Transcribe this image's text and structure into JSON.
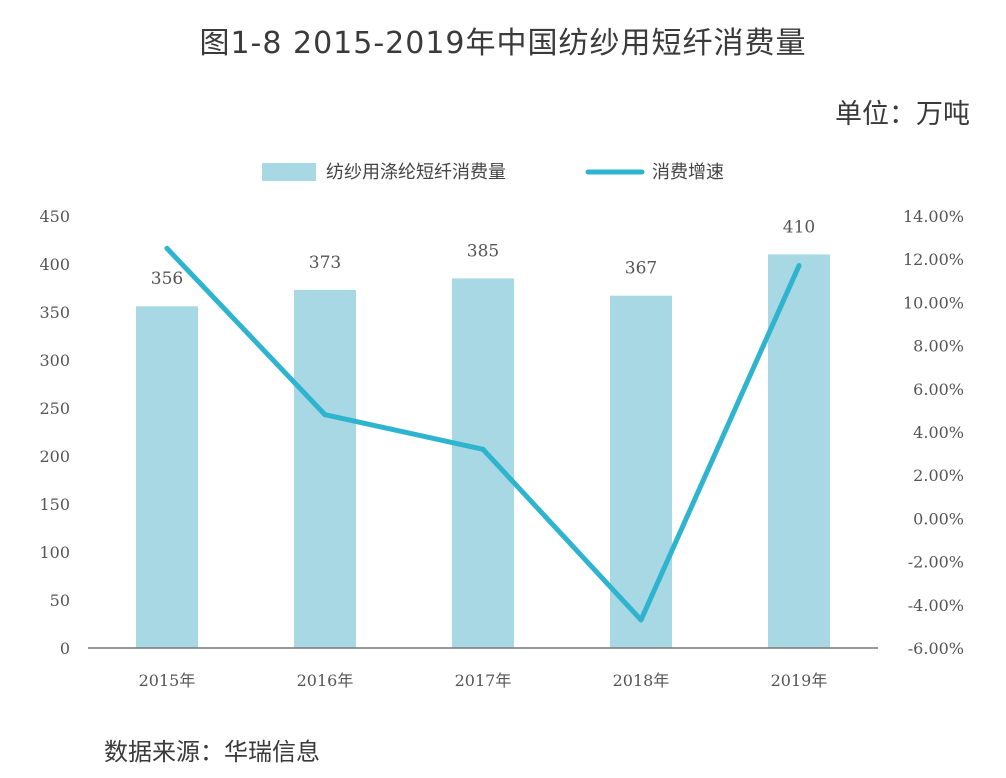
{
  "title": "图1-8  2015-2019年中国纺纱用短纤消费量",
  "unit_label": "单位：万吨",
  "source": "数据来源：华瑞信息",
  "colors": {
    "bar": "#a8d8e3",
    "line": "#2fb4cf",
    "axis": "#777777"
  },
  "chart_data": {
    "type": "bar",
    "categories": [
      "2015年",
      "2016年",
      "2017年",
      "2018年",
      "2019年"
    ],
    "series": [
      {
        "name": "纺纱用涤纶短纤消费量",
        "type": "bar",
        "axis": "left",
        "values": [
          356,
          373,
          385,
          367,
          410
        ]
      },
      {
        "name": "消费增速",
        "type": "line",
        "axis": "right",
        "values": [
          12.5,
          4.8,
          3.2,
          -4.7,
          11.7
        ]
      }
    ],
    "left_axis": {
      "ylim": [
        0,
        450
      ],
      "ticks": [
        "0",
        "50",
        "100",
        "150",
        "200",
        "250",
        "300",
        "350",
        "400",
        "450"
      ]
    },
    "right_axis": {
      "ylim": [
        -6,
        14
      ],
      "ticks": [
        "-6.00%",
        "-4.00%",
        "-2.00%",
        "0.00%",
        "2.00%",
        "4.00%",
        "6.00%",
        "8.00%",
        "10.00%",
        "12.00%",
        "14.00%"
      ]
    },
    "data_labels": [
      "356",
      "373",
      "385",
      "367",
      "410"
    ],
    "legend_position": "top-center",
    "grid": false
  }
}
